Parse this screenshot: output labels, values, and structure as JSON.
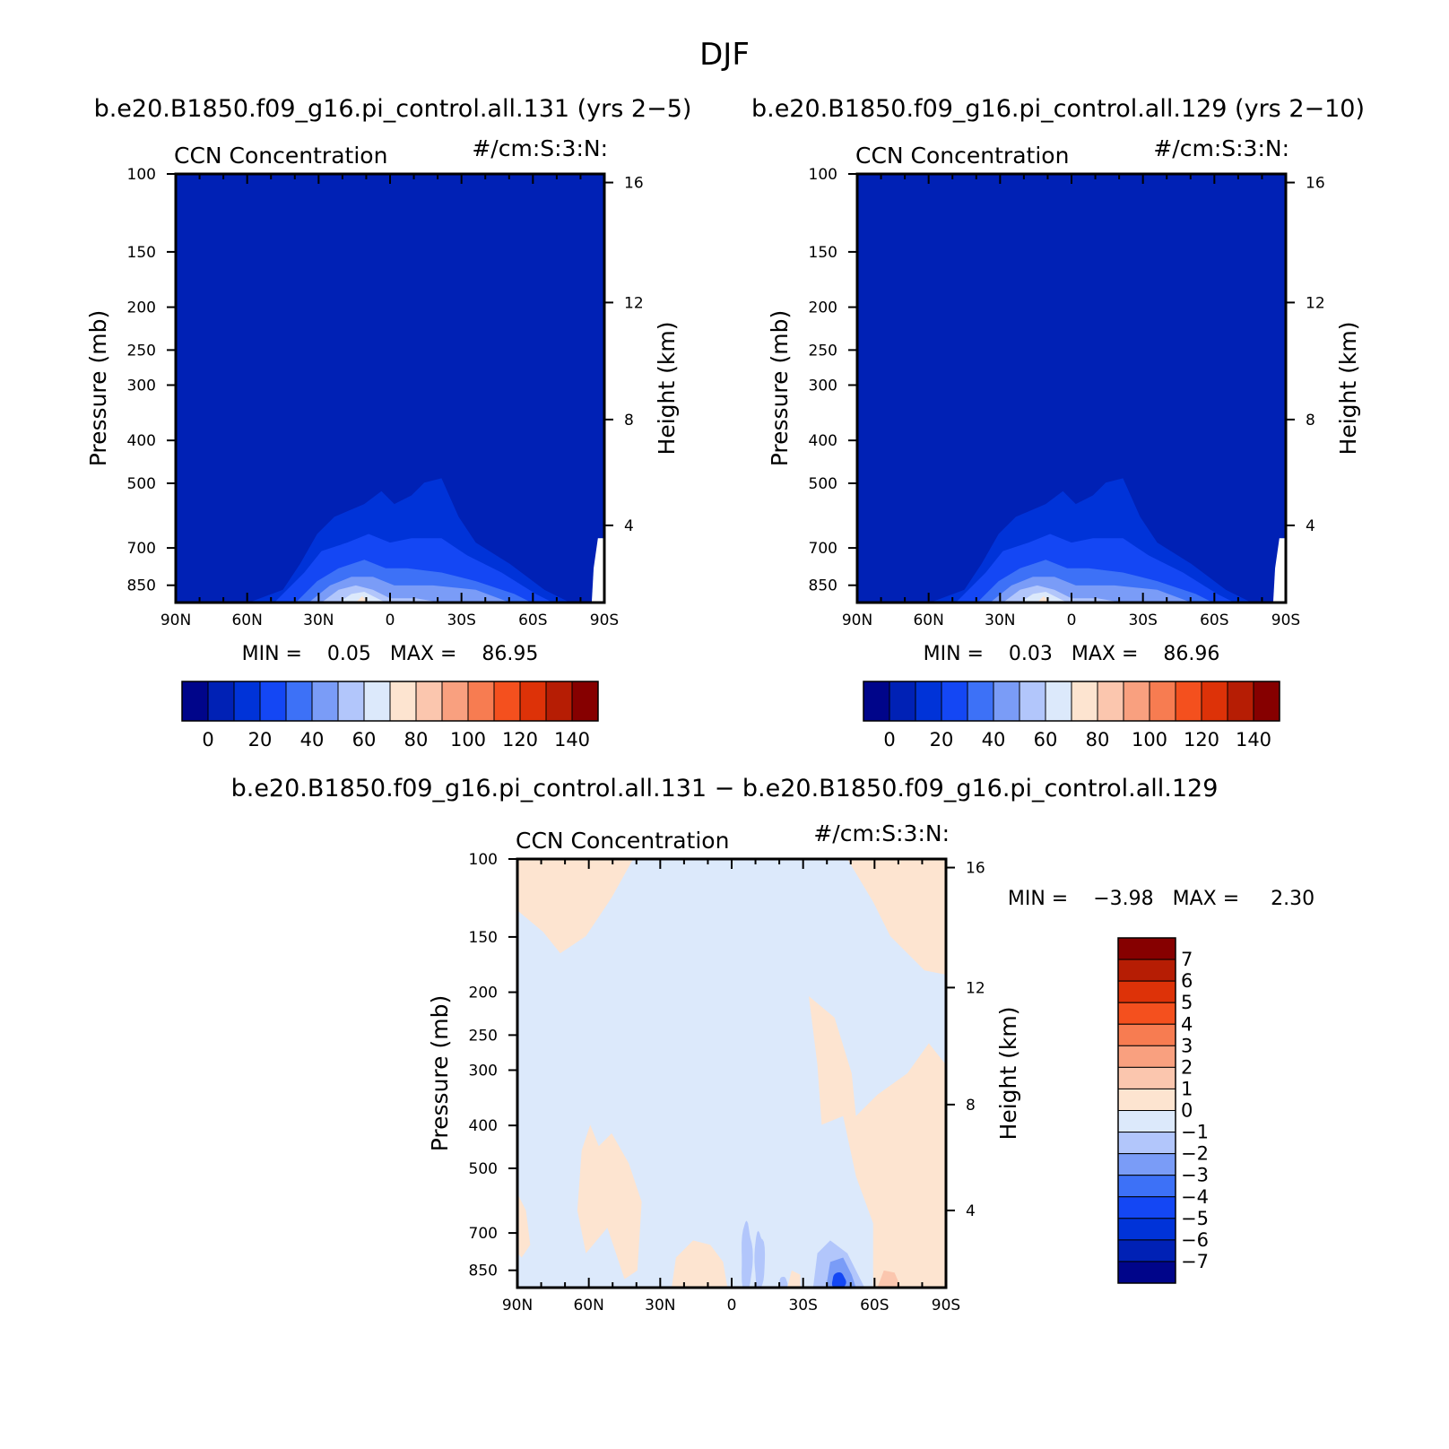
{
  "figure": {
    "title": "DJF",
    "diff_title": "b.e20.B1850.f09_g16.pi_control.all.131 − b.e20.B1850.f09_g16.pi_control.all.129"
  },
  "chart_data": [
    {
      "type": "contour",
      "id": "case1",
      "case_title": "b.e20.B1850.f09_g16.pi_control.all.131 (yrs 2−5)",
      "left_label": "CCN Concentration",
      "right_label": "#/cm:S:3:N:",
      "ylabel": "Pressure (mb)",
      "ylabel2": "Height (km)",
      "x_ticks": [
        "90N",
        "60N",
        "30N",
        "0",
        "30S",
        "60S",
        "90S"
      ],
      "y_ticks": [
        "100",
        "150",
        "200",
        "250",
        "300",
        "400",
        "500",
        "700",
        "850"
      ],
      "y2_ticks": [
        "16",
        "12",
        "8",
        "4"
      ],
      "min_text": "MIN =    0.05   MAX =    86.95",
      "min": 0.05,
      "max": 86.95,
      "colorbar_labels": [
        "0",
        "20",
        "40",
        "60",
        "80",
        "100",
        "120",
        "140"
      ],
      "levels": [
        0,
        10,
        20,
        30,
        40,
        50,
        60,
        70,
        80,
        90,
        100,
        110,
        120,
        130,
        140
      ],
      "colors": [
        "#00058a",
        "#0021b5",
        "#0033d8",
        "#1447f4",
        "#3d71f7",
        "#7a9cf7",
        "#b2c6fb",
        "#dce9fb",
        "#fde4d0",
        "#fbc6ae",
        "#f9a07f",
        "#f77c51",
        "#f4501e",
        "#dd3208",
        "#b61d04",
        "#860000"
      ]
    },
    {
      "type": "contour",
      "id": "case2",
      "case_title": "b.e20.B1850.f09_g16.pi_control.all.129 (yrs 2−10)",
      "left_label": "CCN Concentration",
      "right_label": "#/cm:S:3:N:",
      "ylabel": "Pressure (mb)",
      "ylabel2": "Height (km)",
      "x_ticks": [
        "90N",
        "60N",
        "30N",
        "0",
        "30S",
        "60S",
        "90S"
      ],
      "y_ticks": [
        "100",
        "150",
        "200",
        "250",
        "300",
        "400",
        "500",
        "700",
        "850"
      ],
      "y2_ticks": [
        "16",
        "12",
        "8",
        "4"
      ],
      "min_text": "MIN =    0.03   MAX =    86.96",
      "min": 0.03,
      "max": 86.96,
      "colorbar_labels": [
        "0",
        "20",
        "40",
        "60",
        "80",
        "100",
        "120",
        "140"
      ],
      "levels": [
        0,
        10,
        20,
        30,
        40,
        50,
        60,
        70,
        80,
        90,
        100,
        110,
        120,
        130,
        140
      ],
      "colors": [
        "#00058a",
        "#0021b5",
        "#0033d8",
        "#1447f4",
        "#3d71f7",
        "#7a9cf7",
        "#b2c6fb",
        "#dce9fb",
        "#fde4d0",
        "#fbc6ae",
        "#f9a07f",
        "#f77c51",
        "#f4501e",
        "#dd3208",
        "#b61d04",
        "#860000"
      ]
    },
    {
      "type": "contour",
      "id": "diff",
      "left_label": "CCN Concentration",
      "right_label": "#/cm:S:3:N:",
      "ylabel": "Pressure (mb)",
      "ylabel2": "Height (km)",
      "x_ticks": [
        "90N",
        "60N",
        "30N",
        "0",
        "30S",
        "60S",
        "90S"
      ],
      "y_ticks": [
        "100",
        "150",
        "200",
        "250",
        "300",
        "400",
        "500",
        "700",
        "850"
      ],
      "y2_ticks": [
        "16",
        "12",
        "8",
        "4"
      ],
      "min_text": "MIN =    −3.98   MAX =     2.30",
      "min": -3.98,
      "max": 2.3,
      "colorbar_labels": [
        "7",
        "6",
        "5",
        "4",
        "3",
        "2",
        "1",
        "0",
        "−1",
        "−2",
        "−3",
        "−4",
        "−5",
        "−6",
        "−7"
      ],
      "levels": [
        7,
        6,
        5,
        4,
        3,
        2,
        1,
        0,
        -1,
        -2,
        -3,
        -4,
        -5,
        -6,
        -7
      ],
      "colors": [
        "#860000",
        "#b61d04",
        "#dd3208",
        "#f4501e",
        "#f77c51",
        "#f9a07f",
        "#fbc6ae",
        "#fde4d0",
        "#dce9fb",
        "#b2c6fb",
        "#7a9cf7",
        "#3d71f7",
        "#1447f4",
        "#0033d8",
        "#0021b5",
        "#00058a"
      ]
    }
  ]
}
